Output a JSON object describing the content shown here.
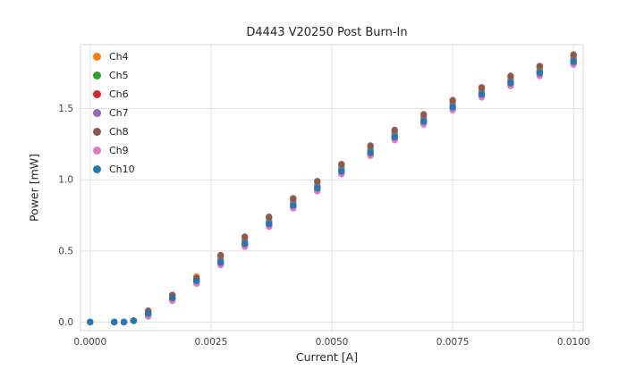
{
  "chart_data": {
    "type": "scatter",
    "title": "D4443 V20250 Post Burn-In",
    "xlabel": "Current [A]",
    "ylabel": "Power [mW]",
    "xlim": [
      -0.0002,
      0.0102
    ],
    "ylim": [
      -0.06,
      1.95
    ],
    "grid": true,
    "legend_position": "upper left",
    "grid_color": "#e2e2e2",
    "border_color": "#d9d9d9",
    "xticks": {
      "values": [
        0.0,
        0.0025,
        0.005,
        0.0075,
        0.01
      ],
      "labels": [
        "0.0000",
        "0.0025",
        "0.0050",
        "0.0075",
        "0.0100"
      ]
    },
    "yticks": {
      "values": [
        0.0,
        0.5,
        1.0,
        1.5
      ],
      "labels": [
        "0.0",
        "0.5",
        "1.0",
        "1.5"
      ]
    },
    "x": [
      0.0,
      0.0005,
      0.0007,
      0.0009,
      0.0012,
      0.0017,
      0.0022,
      0.0027,
      0.0032,
      0.0037,
      0.0042,
      0.0047,
      0.0052,
      0.0058,
      0.0063,
      0.0069,
      0.0075,
      0.0081,
      0.0087,
      0.0093,
      0.01
    ],
    "series": [
      {
        "name": "Ch4",
        "color": "#ff7f0e",
        "values": [
          0.0,
          0.0,
          0.0,
          0.01,
          0.07,
          0.19,
          0.32,
          0.46,
          0.59,
          0.73,
          0.86,
          0.98,
          1.1,
          1.23,
          1.34,
          1.45,
          1.55,
          1.64,
          1.72,
          1.79,
          1.87
        ]
      },
      {
        "name": "Ch5",
        "color": "#2ca02c",
        "values": [
          0.0,
          0.0,
          0.0,
          0.01,
          0.06,
          0.17,
          0.3,
          0.44,
          0.57,
          0.71,
          0.84,
          0.96,
          1.08,
          1.21,
          1.32,
          1.43,
          1.53,
          1.62,
          1.7,
          1.77,
          1.85
        ]
      },
      {
        "name": "Ch6",
        "color": "#d62728",
        "values": [
          0.0,
          0.0,
          0.0,
          0.01,
          0.05,
          0.16,
          0.28,
          0.41,
          0.54,
          0.68,
          0.81,
          0.93,
          1.05,
          1.18,
          1.29,
          1.4,
          1.5,
          1.59,
          1.67,
          1.74,
          1.82
        ]
      },
      {
        "name": "Ch7",
        "color": "#9467bd",
        "values": [
          0.0,
          0.0,
          0.0,
          0.01,
          0.06,
          0.17,
          0.3,
          0.43,
          0.56,
          0.7,
          0.83,
          0.95,
          1.07,
          1.2,
          1.31,
          1.42,
          1.52,
          1.61,
          1.69,
          1.76,
          1.84
        ]
      },
      {
        "name": "Ch8",
        "color": "#8c564b",
        "values": [
          0.0,
          0.0,
          0.0,
          0.01,
          0.08,
          0.19,
          0.31,
          0.47,
          0.6,
          0.74,
          0.87,
          0.99,
          1.11,
          1.24,
          1.35,
          1.46,
          1.56,
          1.65,
          1.73,
          1.8,
          1.88
        ]
      },
      {
        "name": "Ch9",
        "color": "#e377c2",
        "values": [
          0.0,
          0.0,
          0.0,
          0.01,
          0.04,
          0.15,
          0.27,
          0.4,
          0.53,
          0.67,
          0.8,
          0.92,
          1.04,
          1.17,
          1.28,
          1.39,
          1.49,
          1.58,
          1.66,
          1.73,
          1.81
        ]
      },
      {
        "name": "Ch10",
        "color": "#1f77b4",
        "values": [
          0.0,
          0.0,
          0.0,
          0.01,
          0.06,
          0.17,
          0.29,
          0.42,
          0.55,
          0.69,
          0.82,
          0.94,
          1.06,
          1.19,
          1.3,
          1.41,
          1.51,
          1.6,
          1.68,
          1.75,
          1.83
        ]
      }
    ]
  }
}
